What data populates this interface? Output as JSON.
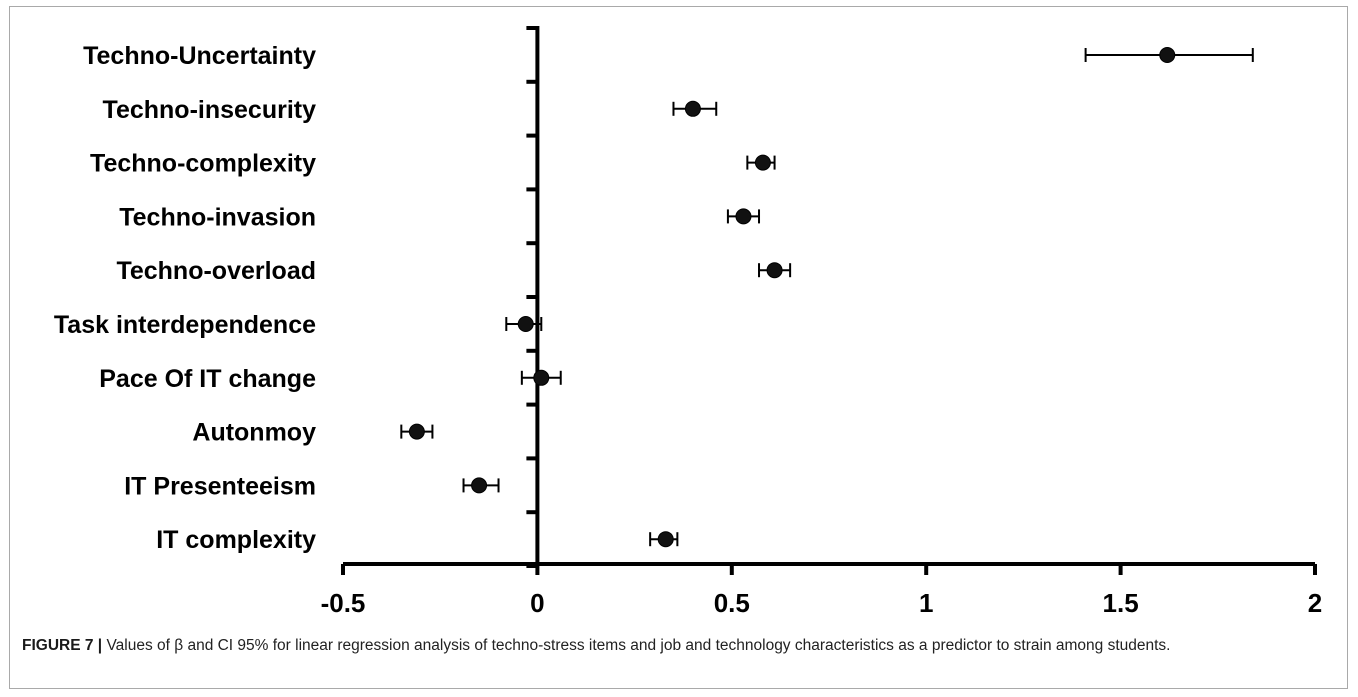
{
  "chart_data": {
    "type": "forest",
    "categories": [
      "Techno-Uncertainty",
      "Techno-insecurity",
      "Techno-complexity",
      "Techno-invasion",
      "Techno-overload",
      "Task interdependence",
      "Pace Of IT change",
      "Autonmoy",
      "IT Presenteeism",
      "IT complexity"
    ],
    "estimates": [
      1.62,
      0.4,
      0.58,
      0.53,
      0.61,
      -0.03,
      0.01,
      -0.31,
      -0.15,
      0.33
    ],
    "ci_low": [
      1.41,
      0.35,
      0.54,
      0.49,
      0.57,
      -0.08,
      -0.04,
      -0.35,
      -0.19,
      0.29
    ],
    "ci_high": [
      1.84,
      0.46,
      0.61,
      0.57,
      0.65,
      0.01,
      0.06,
      -0.27,
      -0.1,
      0.36
    ],
    "xlim": [
      -0.5,
      2
    ],
    "xticks": [
      "-0.5",
      "0",
      "0.5",
      "1",
      "1.5",
      "2"
    ],
    "grid": false
  },
  "caption": {
    "label": "FIGURE 7 |",
    "text": " Values of β and CI 95% for linear regression analysis of techno-stress items and job and technology characteristics as a predictor to strain among students."
  }
}
